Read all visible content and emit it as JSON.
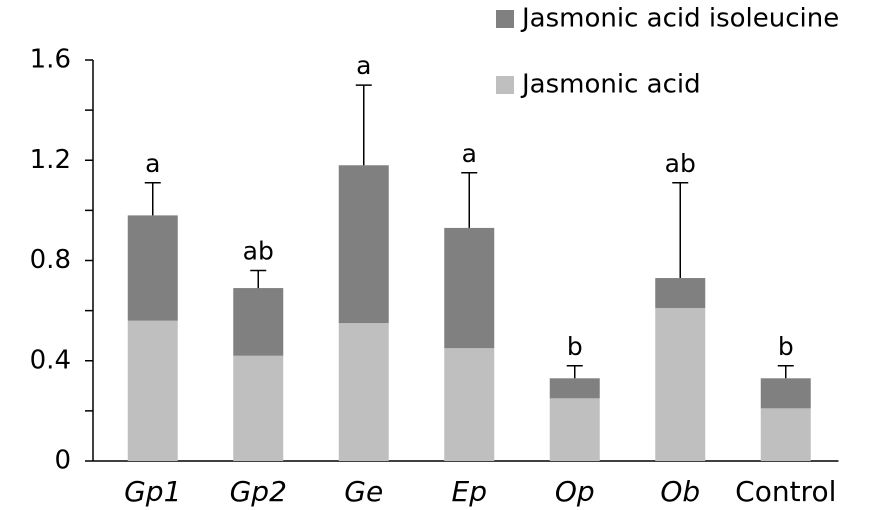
{
  "chart_data": {
    "type": "stacked_bar",
    "categories": [
      "Gp1",
      "Gp2",
      "Ge",
      "Ep",
      "Op",
      "Ob",
      "Control"
    ],
    "italic_categories": [
      true,
      true,
      true,
      true,
      true,
      true,
      false
    ],
    "series": [
      {
        "name": "Jasmonic acid",
        "color": "#bfbfbf",
        "values": [
          0.56,
          0.42,
          0.55,
          0.45,
          0.25,
          0.61,
          0.21
        ]
      },
      {
        "name": "Jasmonic acid isoleucine",
        "color": "#808080",
        "values": [
          0.42,
          0.27,
          0.63,
          0.48,
          0.08,
          0.12,
          0.12
        ],
        "errors": [
          0.13,
          0.07,
          0.32,
          0.22,
          0.05,
          0.38,
          0.05
        ]
      }
    ],
    "annotations": [
      "a",
      "ab",
      "a",
      "a",
      "b",
      "ab",
      "b"
    ],
    "ylim": [
      0,
      1.6
    ],
    "yticks": [
      0,
      0.4,
      0.8,
      1.2,
      1.6
    ],
    "yminorticks": [
      0.2,
      0.6,
      1.0,
      1.4
    ],
    "legend": "top-right"
  }
}
